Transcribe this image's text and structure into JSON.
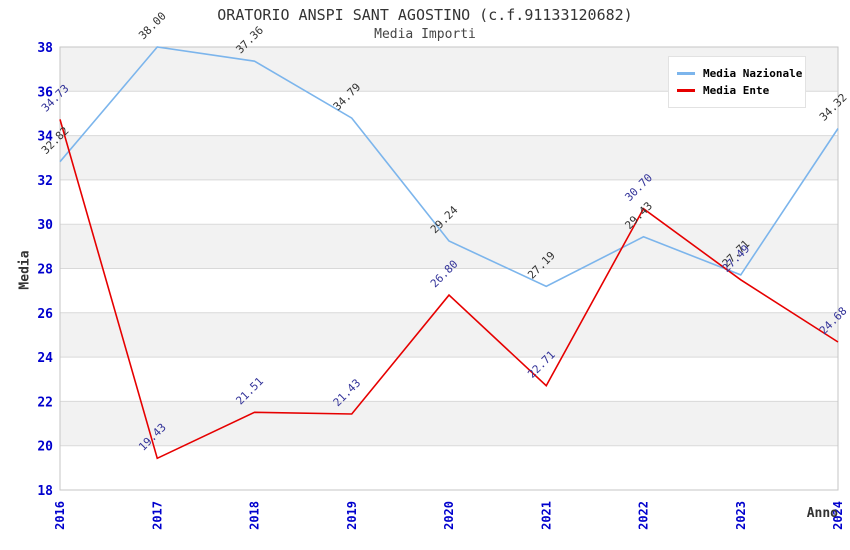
{
  "chart_data": {
    "type": "line",
    "title": "ORATORIO ANSPI SANT AGOSTINO (c.f.91133120682)",
    "subtitle": "Media Importi",
    "xlabel": "Anno",
    "ylabel": "Media",
    "x": [
      2016,
      2017,
      2018,
      2019,
      2020,
      2021,
      2022,
      2023,
      2024
    ],
    "series": [
      {
        "name": "Media Nazionale",
        "color": "#7cb5ec",
        "label_color": "#333333",
        "values": [
          32.82,
          38.0,
          37.36,
          34.79,
          29.24,
          27.19,
          29.43,
          27.71,
          34.32
        ],
        "point_labels": [
          "32.82",
          "38.00",
          "37.36",
          "34.79",
          "29.24",
          "27.19",
          "29.43",
          "27.71",
          "34.32"
        ]
      },
      {
        "name": "Media Ente",
        "color": "#e60000",
        "label_color": "#333399",
        "values": [
          34.73,
          19.43,
          21.51,
          21.43,
          26.8,
          22.71,
          30.7,
          27.49,
          24.68
        ],
        "point_labels": [
          "34.73",
          "19.43",
          "21.51",
          "21.43",
          "26.80",
          "22.71",
          "30.70",
          "27.49",
          "24.68"
        ]
      }
    ],
    "ylim": [
      18,
      38
    ],
    "yticks": [
      18,
      20,
      22,
      24,
      26,
      28,
      30,
      32,
      34,
      36,
      38
    ],
    "grid": true,
    "legend_position": "top-right",
    "tick_color": "#0000cd",
    "band_colors": [
      "#ffffff",
      "#f2f2f2"
    ],
    "grid_color": "#d9d9d9",
    "border_color": "#c6c6c6"
  }
}
